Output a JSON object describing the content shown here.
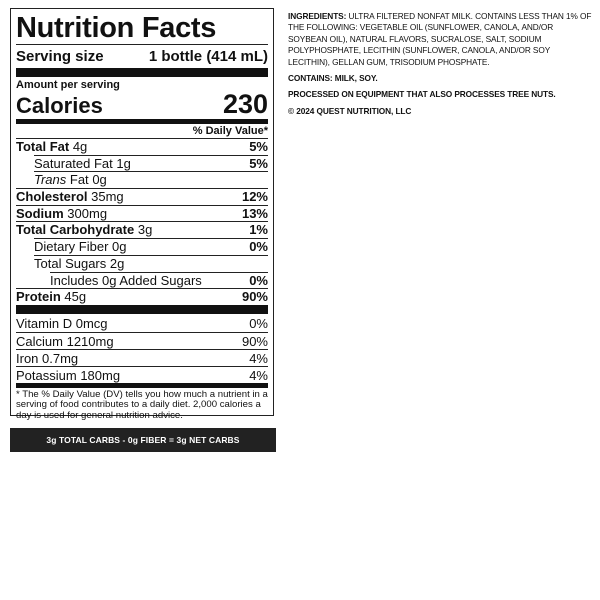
{
  "label": {
    "title": "Nutrition Facts",
    "serving_size_label": "Serving size",
    "serving_size": "1 bottle (414 mL)",
    "amount_per_serving": "Amount per serving",
    "calories_label": "Calories",
    "calories": "230",
    "daily_value_header": "% Daily Value*",
    "nutrients": [
      {
        "name": "Total Fat",
        "amount": "4g",
        "dv": "5%"
      },
      {
        "name": "Saturated Fat",
        "amount": "1g",
        "dv": "5%"
      },
      {
        "name_italic": "Trans",
        "name": "Fat",
        "amount": "0g"
      },
      {
        "name": "Cholesterol",
        "amount": "35mg",
        "dv": "12%"
      },
      {
        "name": "Sodium",
        "amount": "300mg",
        "dv": "13%"
      },
      {
        "name": "Total Carbohydrate",
        "amount": "3g",
        "dv": "1%"
      },
      {
        "name": "Dietary Fiber",
        "amount": "0g",
        "dv": "0%"
      },
      {
        "name": "Total Sugars",
        "amount": "2g"
      },
      {
        "name": "Includes 0g Added Sugars",
        "dv": "0%"
      },
      {
        "name": "Protein",
        "amount": "45g",
        "dv": "90%"
      }
    ],
    "vitamins": [
      {
        "name": "Vitamin D",
        "amount": "0mcg",
        "dv": "0%"
      },
      {
        "name": "Calcium",
        "amount": "1210mg",
        "dv": "90%"
      },
      {
        "name": "Iron",
        "amount": "0.7mg",
        "dv": "4%"
      },
      {
        "name": "Potassium",
        "amount": "180mg",
        "dv": "4%"
      }
    ],
    "footnote": "* The % Daily Value (DV) tells you how much a nutrient in a serving of food contributes to a daily diet. 2,000 calories a day is used for general nutrition advice."
  },
  "net_carbs": "3g TOTAL CARBS - 0g FIBER = 3g NET CARBS",
  "ingredients": {
    "label": "INGREDIENTS:",
    "text": "ULTRA FILTERED NONFAT MILK. CONTAINS LESS THAN 1% OF THE FOLLOWING: VEGETABLE OIL (SUNFLOWER, CANOLA, AND/OR SOYBEAN OIL), NATURAL FLAVORS, SUCRALOSE, SALT, SODIUM POLYPHOSPHATE, LECITHIN (SUNFLOWER, CANOLA, AND/OR SOY LECITHIN), GELLAN GUM, TRISODIUM PHOSPHATE."
  },
  "contains": "CONTAINS: MILK, SOY.",
  "processing": "PROCESSED ON EQUIPMENT THAT ALSO PROCESSES TREE NUTS.",
  "copyright": "© 2024 QUEST NUTRITION, LLC"
}
